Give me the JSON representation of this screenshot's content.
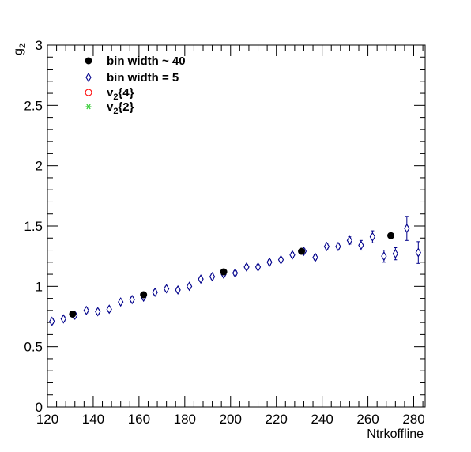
{
  "chart_data": {
    "type": "scatter",
    "xlabel": "Ntrkoffline",
    "ylabel_main": "g",
    "ylabel_sub": "2",
    "xlim": [
      120,
      285
    ],
    "ylim": [
      0,
      3
    ],
    "x_ticks": [
      120,
      140,
      160,
      180,
      200,
      220,
      240,
      260,
      280
    ],
    "y_ticks": [
      0,
      0.5,
      1,
      1.5,
      2,
      2.5,
      3
    ],
    "y_tick_labels": [
      "0",
      "0.5",
      "1",
      "1.5",
      "2",
      "2.5",
      "3"
    ],
    "grid": false,
    "legend_position": "top-left",
    "series": [
      {
        "name": "bin width ~ 40",
        "legend_main": "bin width ~ 40",
        "legend_sub": "",
        "legend_suffix": "",
        "marker": "filled-circle",
        "color": "#000000",
        "x": [
          131,
          162,
          197,
          231,
          270
        ],
        "y": [
          0.77,
          0.93,
          1.12,
          1.29,
          1.42
        ],
        "err": [
          0,
          0,
          0,
          0,
          0
        ]
      },
      {
        "name": "bin width = 5",
        "legend_main": "bin width = 5",
        "legend_sub": "",
        "legend_suffix": "",
        "marker": "open-diamond",
        "color": "#00008b",
        "x": [
          122,
          127,
          132,
          137,
          142,
          147,
          152,
          157,
          162,
          167,
          172,
          177,
          182,
          187,
          192,
          197,
          202,
          207,
          212,
          217,
          222,
          227,
          232,
          237,
          242,
          247,
          252,
          257,
          262,
          267,
          272,
          277,
          282
        ],
        "y": [
          0.71,
          0.73,
          0.76,
          0.8,
          0.79,
          0.81,
          0.87,
          0.89,
          0.91,
          0.95,
          0.98,
          0.97,
          1.0,
          1.06,
          1.08,
          1.1,
          1.11,
          1.16,
          1.16,
          1.2,
          1.22,
          1.26,
          1.29,
          1.24,
          1.33,
          1.33,
          1.38,
          1.34,
          1.41,
          1.25,
          1.27,
          1.48,
          1.28
        ],
        "err": [
          0.02,
          0.02,
          0.02,
          0.02,
          0.02,
          0.02,
          0.02,
          0.02,
          0.02,
          0.02,
          0.02,
          0.02,
          0.02,
          0.02,
          0.02,
          0.02,
          0.02,
          0.02,
          0.02,
          0.02,
          0.02,
          0.02,
          0.02,
          0.02,
          0.02,
          0.02,
          0.03,
          0.04,
          0.05,
          0.05,
          0.05,
          0.1,
          0.09
        ]
      },
      {
        "name": "v2{4}",
        "legend_main": "v",
        "legend_sub": "2",
        "legend_suffix": "{4}",
        "marker": "open-circle",
        "color": "#ff0000",
        "x": [],
        "y": [],
        "err": []
      },
      {
        "name": "v2{2}",
        "legend_main": "v",
        "legend_sub": "2",
        "legend_suffix": "{2}",
        "marker": "star",
        "color": "#33cc33",
        "x": [],
        "y": [],
        "err": []
      }
    ]
  }
}
